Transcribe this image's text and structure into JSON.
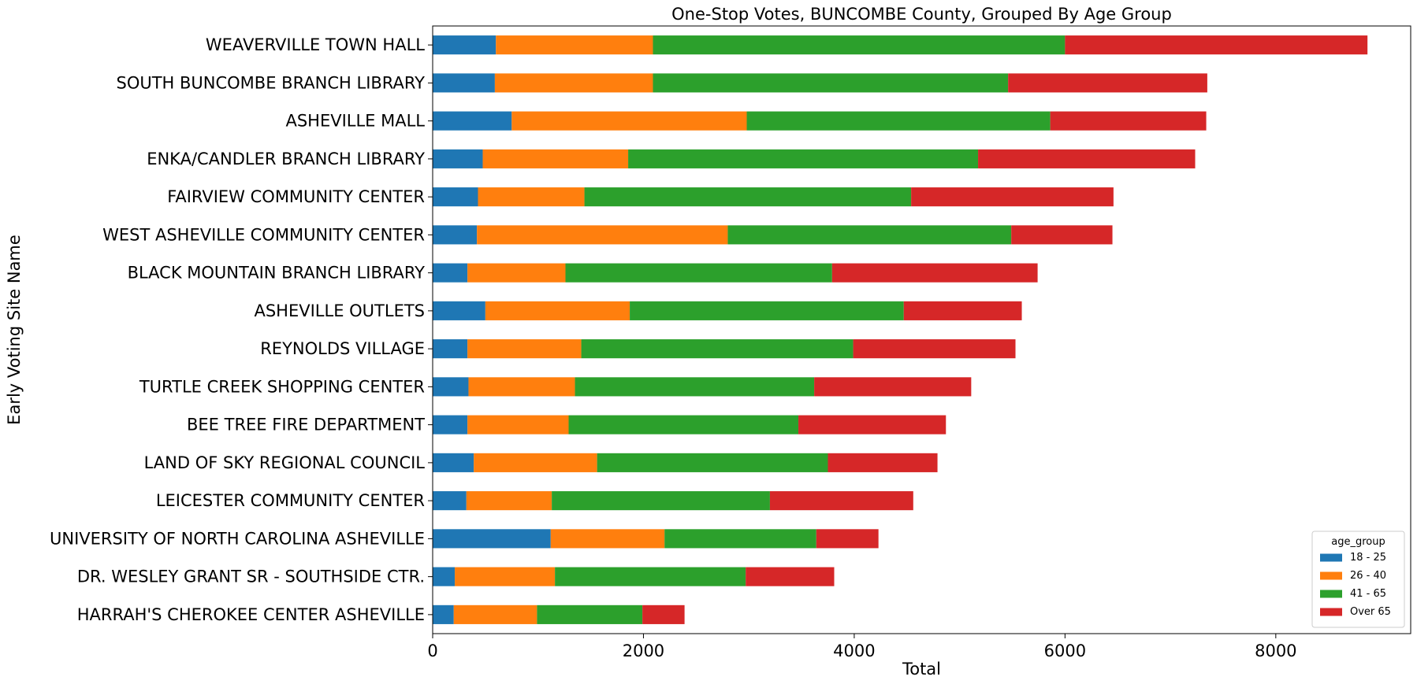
{
  "chart_data": {
    "type": "bar",
    "orientation": "horizontal",
    "stacked": true,
    "title": "One-Stop Votes, BUNCOMBE County, Grouped By Age Group",
    "xlabel": "Total",
    "ylabel": "Early Voting Site Name",
    "xlim": [
      0,
      9280
    ],
    "xticks": [
      0,
      2000,
      4000,
      6000,
      8000
    ],
    "grid": false,
    "legend": {
      "title": "age_group",
      "placement": "lower-right"
    },
    "categories": [
      "WEAVERVILLE TOWN HALL",
      "SOUTH BUNCOMBE BRANCH LIBRARY",
      "ASHEVILLE MALL",
      "ENKA/CANDLER BRANCH LIBRARY",
      "FAIRVIEW COMMUNITY CENTER",
      "WEST ASHEVILLE COMMUNITY CENTER",
      "BLACK MOUNTAIN BRANCH LIBRARY",
      "ASHEVILLE OUTLETS",
      "REYNOLDS VILLAGE",
      "TURTLE CREEK SHOPPING CENTER",
      "BEE TREE FIRE DEPARTMENT",
      "LAND OF SKY REGIONAL COUNCIL",
      "LEICESTER COMMUNITY CENTER",
      "UNIVERSITY OF NORTH CAROLINA ASHEVILLE",
      "DR. WESLEY GRANT SR - SOUTHSIDE CTR.",
      "HARRAH'S CHEROKEE CENTER ASHEVILLE"
    ],
    "series": [
      {
        "name": "18 - 25",
        "color": "#1f77b4",
        "values": [
          600,
          590,
          750,
          475,
          430,
          420,
          330,
          500,
          330,
          340,
          330,
          390,
          320,
          1120,
          210,
          200
        ]
      },
      {
        "name": "26 - 40",
        "color": "#ff7f0e",
        "values": [
          1490,
          1500,
          2230,
          1380,
          1010,
          2380,
          930,
          1370,
          1080,
          1010,
          960,
          1170,
          810,
          1080,
          950,
          790
        ]
      },
      {
        "name": "41 - 65",
        "color": "#2ca02c",
        "values": [
          3910,
          3370,
          2880,
          3320,
          3100,
          2690,
          2530,
          2600,
          2580,
          2270,
          2180,
          2190,
          2070,
          1440,
          1810,
          1000
        ]
      },
      {
        "name": "Over 65",
        "color": "#d62728",
        "values": [
          2870,
          1890,
          1480,
          2060,
          1920,
          960,
          1950,
          1120,
          1540,
          1490,
          1400,
          1040,
          1360,
          590,
          840,
          400
        ]
      }
    ]
  }
}
